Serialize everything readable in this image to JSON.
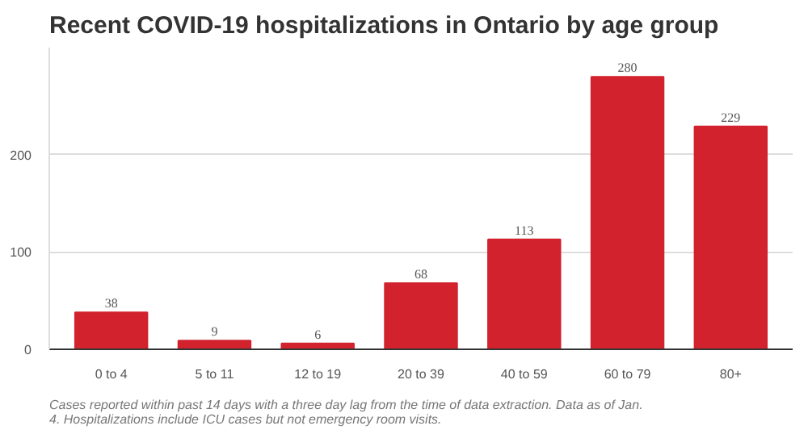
{
  "chart_data": {
    "type": "bar",
    "title": "Recent COVID-19 hospitalizations in Ontario by age group",
    "categories": [
      "0 to 4",
      "5 to 11",
      "12 to 19",
      "20 to 39",
      "40 to 59",
      "60 to 79",
      "80+"
    ],
    "values": [
      38,
      9,
      6,
      68,
      113,
      280,
      229
    ],
    "color": "#d1222e",
    "ylim": [
      0,
      310
    ],
    "yticks": [
      0,
      100,
      200
    ],
    "grid": "y",
    "data_labels": true,
    "annotations": [
      "Cases reported within past 14 days with a three day lag from the time of data extraction. Data as of Jan. 4. Hospitalizations include ICU cases but not emergency room visits."
    ]
  }
}
